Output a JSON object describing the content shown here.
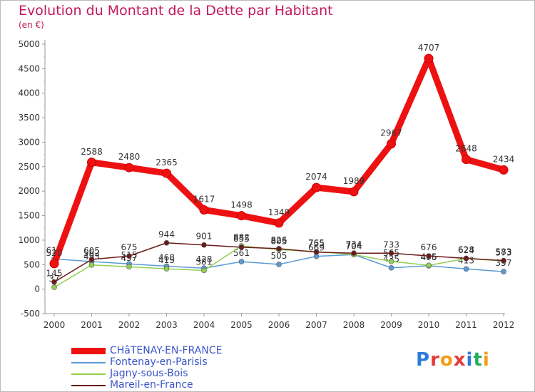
{
  "chart_data": {
    "type": "line",
    "title": "Evolution du Montant de la Dette par Habitant",
    "subtitle": "(en €)",
    "x": [
      "2000",
      "2001",
      "2002",
      "2003",
      "2004",
      "2005",
      "2006",
      "2007",
      "2008",
      "2009",
      "2010",
      "2011",
      "2012"
    ],
    "ylim": [
      -500,
      5000
    ],
    "yticks": [
      -500,
      0,
      500,
      1000,
      1500,
      2000,
      2500,
      3000,
      3500,
      4000,
      4500,
      5000
    ],
    "grid": false,
    "legend_position": "bottom-left",
    "series": [
      {
        "name": "CHâTENAY-EN-FRANCE",
        "color": "#ee1111",
        "values": [
          520,
          2588,
          2480,
          2365,
          1617,
          1498,
          1349,
          2074,
          1989,
          2967,
          4707,
          2648,
          2434
        ]
      },
      {
        "name": "Fontenay-en-Parisis",
        "color": "#5b9bd5",
        "values": [
          616,
          562,
          515,
          468,
          428,
          561,
          505,
          669,
          704,
          435,
          476,
          413,
          357
        ]
      },
      {
        "name": "Jagny-sous-Bois",
        "color": "#92d050",
        "values": [
          37,
          493,
          457,
          415,
          381,
          882,
          805,
          765,
          704,
          565,
          485,
          624,
          573
        ]
      },
      {
        "name": "Mareil-en-France",
        "color": "#6b1b1b",
        "values": [
          145,
          605,
          675,
          944,
          901,
          855,
          826,
          755,
          734,
          733,
          676,
          628,
          583
        ]
      }
    ]
  },
  "branding": {
    "logo_text": "Proxiti"
  }
}
